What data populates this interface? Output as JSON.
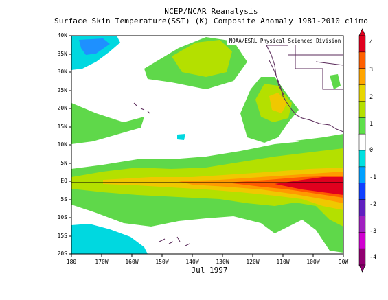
{
  "title_line1": "NCEP/NCAR Reanalysis",
  "title_line2": "Surface Skin Temperature(SST) (K) Composite Anomaly 1981-2010 climo",
  "credit": "NOAA/ESRL Physical Sciences Division",
  "date_label": "Jul 1997",
  "lat_labels": [
    "40N",
    "35N",
    "30N",
    "25N",
    "20N",
    "15N",
    "10N",
    "5N",
    "EQ",
    "5S",
    "10S",
    "15S",
    "20S"
  ],
  "lon_labels": [
    "180",
    "170W",
    "160W",
    "150W",
    "140W",
    "130W",
    "120W",
    "110W",
    "100W",
    "90W"
  ],
  "colorbar": {
    "tick_labels": [
      "4",
      "3",
      "2",
      "1",
      "0",
      "-1",
      "-2",
      "-3",
      "-4"
    ],
    "colors": [
      "#e0001e",
      "#ff6000",
      "#ffa500",
      "#e8d600",
      "#b4e000",
      "#5ee04a",
      "#ffffff",
      "#00e0e0",
      "#00a0ff",
      "#1040ff",
      "#6020c0",
      "#a020c0",
      "#d000d0",
      "#900070"
    ]
  }
}
